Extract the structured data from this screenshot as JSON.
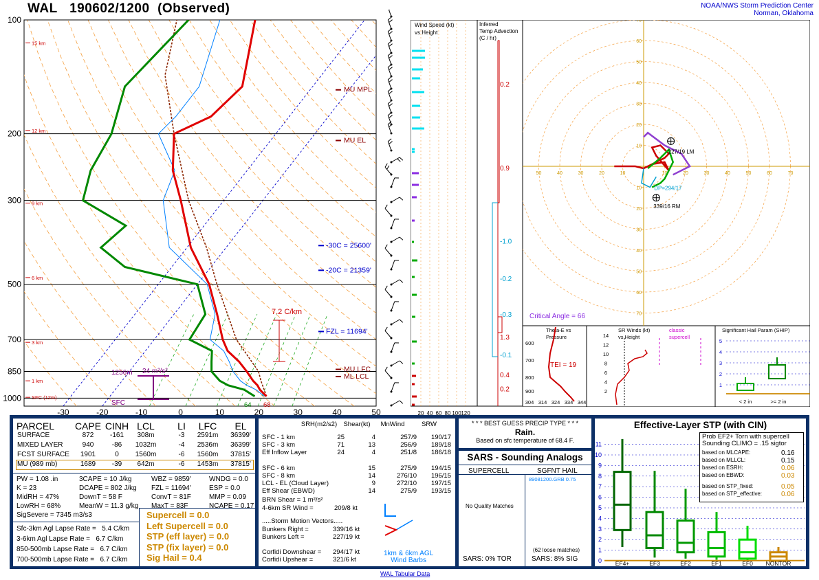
{
  "header": {
    "station": "WAL",
    "time": "190602/1200",
    "obs": "(Observed)",
    "org_line1": "NOAA/NWS Storm Prediction Center",
    "org_line2": "Norman, Oklahoma"
  },
  "chart_data": [
    {
      "type": "line",
      "name": "skewt",
      "xlabel_ticks": [
        -30,
        -20,
        -10,
        0,
        10,
        20,
        30,
        40,
        50
      ],
      "pressure_ticks": [
        100,
        200,
        300,
        500,
        700,
        850,
        1000
      ],
      "height_labels": [
        "15 km",
        "12 km",
        "9 km",
        "6 km",
        "3 km",
        "1 km",
        "SFC (12m)"
      ],
      "temperature_profile": [
        [
          989,
          20
        ],
        [
          950,
          17
        ],
        [
          925,
          15.5
        ],
        [
          900,
          13.5
        ],
        [
          850,
          10
        ],
        [
          800,
          6
        ],
        [
          750,
          1
        ],
        [
          700,
          -2.5
        ],
        [
          600,
          -9
        ],
        [
          500,
          -17
        ],
        [
          400,
          -29
        ],
        [
          300,
          -41
        ],
        [
          250,
          -49
        ],
        [
          200,
          -56
        ],
        [
          180,
          -50
        ],
        [
          150,
          -48
        ],
        [
          100,
          -58
        ]
      ],
      "dewpoint_profile": [
        [
          989,
          17
        ],
        [
          950,
          13
        ],
        [
          925,
          8
        ],
        [
          900,
          5
        ],
        [
          850,
          1
        ],
        [
          800,
          -1
        ],
        [
          750,
          -3
        ],
        [
          700,
          -11
        ],
        [
          600,
          -12
        ],
        [
          500,
          -20
        ],
        [
          450,
          -42
        ],
        [
          400,
          -52
        ],
        [
          350,
          -50
        ],
        [
          300,
          -66
        ],
        [
          250,
          -70
        ],
        [
          200,
          -72
        ],
        [
          150,
          -78
        ],
        [
          100,
          -75
        ]
      ],
      "annotations": {
        "mu_mpl": "MU MPL",
        "mu_el": "MU EL",
        "mu_lfc": "MU LFC",
        "ml_lcl": "ML LCL",
        "m30c": "-30C = 25600'",
        "m20c": "-20C = 21359'",
        "fzl": "FZL = 11694'",
        "lapse": "7.2 C/km",
        "srh_depth": "1256m",
        "srh_value": "24 m²/s²",
        "sfc": "SFC",
        "sfc_td": "64",
        "sfc_t": "68"
      }
    },
    {
      "type": "bar",
      "name": "wind-speed-vs-height",
      "title_line1": "Wind Speed (kt)",
      "title_line2": "vs Height",
      "x_ticks": [
        "20",
        "40",
        "60",
        "80",
        "100",
        "120"
      ]
    },
    {
      "type": "line",
      "name": "inferred-temp-advection",
      "title_line1": "Inferred",
      "title_line2": "Temp Advection",
      "title_line3": "(C / hr)",
      "values": [
        {
          "v": "0.2",
          "color": "#cc0000",
          "p": 150
        },
        {
          "v": "0.9",
          "color": "#cc0000",
          "p": 250
        },
        {
          "v": "-1.0",
          "color": "#00a0d0",
          "p": 390
        },
        {
          "v": "-0.2",
          "color": "#00a0d0",
          "p": 490
        },
        {
          "v": "-0.3",
          "color": "#00a0d0",
          "p": 610
        },
        {
          "v": "1.3",
          "color": "#cc0000",
          "p": 700
        },
        {
          "v": "-0.1",
          "color": "#00a0d0",
          "p": 780
        },
        {
          "v": "0.4",
          "color": "#cc0000",
          "p": 880
        },
        {
          "v": "0.2",
          "color": "#cc0000",
          "p": 960
        }
      ]
    },
    {
      "type": "line",
      "name": "hodograph",
      "ring_labels": [
        "10",
        "20",
        "30",
        "40",
        "50",
        "60",
        "70"
      ],
      "x_ticks": [
        "50",
        "40",
        "30",
        "20",
        "10",
        "10",
        "20",
        "30",
        "40",
        "50",
        "60",
        "70"
      ],
      "y_ticks": [
        "70",
        "60",
        "50",
        "40",
        "30",
        "20",
        "10",
        "10",
        "20",
        "30",
        "40",
        "50",
        "60",
        "70"
      ],
      "lm_label": "227/19 LM",
      "rm_label": "339/16 RM",
      "dp_label": "DP=294/17",
      "critical_angle": "Critical Angle = 66"
    },
    {
      "type": "line",
      "name": "theta-e-vs-pressure",
      "title_line1": "Theta-E vs",
      "title_line2": "Pressure",
      "tei": "TEI = 19",
      "y_ticks": [
        "600",
        "700",
        "800",
        "900"
      ],
      "x_ticks": [
        "304",
        "314",
        "324",
        "334",
        "344"
      ]
    },
    {
      "type": "line",
      "name": "sr-winds-vs-height",
      "title_line1": "SR Winds (kt)",
      "title_line2": "vs Height",
      "classic_line1": "classic",
      "classic_line2": "supercell",
      "y_ticks": [
        "14",
        "12",
        "10",
        "8",
        "6",
        "4",
        "2"
      ]
    },
    {
      "type": "bar",
      "name": "ship",
      "title": "Significant Hail Param (SHIP)",
      "y_ticks": [
        "5",
        "4",
        "3",
        "2",
        "1"
      ],
      "categories": [
        "< 2 in",
        ">= 2 in"
      ]
    }
  ],
  "parcel_table": {
    "headers": [
      "PARCEL",
      "CAPE",
      "CINH",
      "LCL",
      "LI",
      "LFC",
      "EL"
    ],
    "rows": [
      [
        "SURFACE",
        "872",
        "-161",
        "308m",
        "-3",
        "2591m",
        "36399'"
      ],
      [
        "MIXED LAYER",
        "940",
        "-86",
        "1032m",
        "-4",
        "2536m",
        "36399'"
      ],
      [
        "FCST SURFACE",
        "1901",
        "0",
        "1560m",
        "-6",
        "1560m",
        "37815'"
      ],
      [
        "MU   (989 mb)",
        "1689",
        "-39",
        "642m",
        "-6",
        "1453m",
        "37815'"
      ]
    ]
  },
  "indices": {
    "c1": [
      "PW = 1.08 .in",
      "K = 23",
      "MidRH = 47%",
      "LowRH = 68%",
      "SigSevere = 7345 m3/s3"
    ],
    "c2": [
      "3CAPE = 10 J/kg",
      "DCAPE = 802 J/kg",
      "DownT = 58 F",
      "MeanW = 11.3 g/kg"
    ],
    "c3": [
      "WBZ = 9859'",
      "FZL = 11694'",
      "ConvT = 81F",
      "MaxT = 83F"
    ],
    "c4": [
      "WNDG = 0.0",
      "ESP = 0.0",
      "MMP = 0.09",
      "NCAPE = 0.17"
    ]
  },
  "lapse_rates": [
    "Sfc-3km Agl Lapse Rate =   5.4 C/km",
    "3-6km Agl Lapse Rate =   6.7 C/km",
    "850-500mb Lapse Rate =   6.7 C/km",
    "700-500mb Lapse Rate =   6.7 C/km"
  ],
  "composite": [
    "Supercell = 0.0",
    "Left Supercell = 0.0",
    "STP (eff layer) = 0.0",
    "STP (fix layer) = 0.0",
    "Sig Hail = 0.4"
  ],
  "kinematics": {
    "headers": [
      "SRH(m2/s2)",
      "Shear(kt)",
      "MnWind",
      "SRW"
    ],
    "rows": [
      [
        "SFC - 1 km",
        "25",
        "4",
        "257/9",
        "190/17"
      ],
      [
        "SFC - 3 km",
        "71",
        "13",
        "256/9",
        "189/18"
      ],
      [
        "Eff Inflow Layer",
        "24",
        "4",
        "251/8",
        "186/18"
      ],
      [
        "",
        "",
        "",
        "",
        ""
      ],
      [
        "SFC - 6 km",
        "",
        "15",
        "275/9",
        "194/15"
      ],
      [
        "SFC - 8 km",
        "",
        "14",
        "276/10",
        "196/15"
      ],
      [
        "LCL - EL (Cloud Layer)",
        "",
        "9",
        "272/10",
        "197/15"
      ],
      [
        "Eff Shear (EBWD)",
        "",
        "14",
        "275/9",
        "193/15"
      ]
    ],
    "brn": "BRN Shear = 1 m²/s²",
    "srwind_label": "4-6km SR Wind =",
    "srwind_value": "209/8 kt",
    "motion_title": ".....Storm Motion Vectors.....",
    "motion": [
      [
        "Bunkers Right =",
        "339/16 kt"
      ],
      [
        "Bunkers Left =",
        "227/19 kt"
      ],
      [
        "",
        ""
      ],
      [
        "Corfidi Downshear =",
        "294/17 kt"
      ],
      [
        "Corfidi Upshear =",
        "321/6 kt"
      ]
    ],
    "mini_label1": "1km & 6km AGL",
    "mini_label2": "Wind Barbs"
  },
  "precip": {
    "title": "* * * BEST GUESS PRECIP TYPE * * *",
    "value": "Rain.",
    "note": "Based on sfc temperature of 68.4 F."
  },
  "sars": {
    "title": "SARS - Sounding Analogs",
    "supercell": "SUPERCELL",
    "hail": "SGFNT HAIL",
    "hail_match": "89081200.GRB  0.75",
    "no_quality": "No Quality Matches",
    "loose": "(62 loose matches)",
    "tor": "SARS:  0% TOR",
    "sig": "SARS:  8% SIG"
  },
  "stp": {
    "title": "Effective-Layer STP (with CIN)",
    "prob_line1": "Prob EF2+ Torn with supercell",
    "prob_line2": "Sounding CLIMO = .15 sigtor",
    "based": [
      [
        "based on MLCAPE:",
        "0.16",
        "#000000"
      ],
      [
        "based on MLLCL:",
        "0.15",
        "#000000"
      ],
      [
        "based on ESRH:",
        "0.06",
        "#cc8800"
      ],
      [
        "based on EBWD:",
        "0.03",
        "#cc8800"
      ],
      [
        "based on STP_fixed:",
        "0.05",
        "#cc8800"
      ],
      [
        "based on STP_effective:",
        "0.06",
        "#cc8800"
      ]
    ],
    "y_ticks": [
      "11",
      "10",
      "9",
      "8",
      "7",
      "6",
      "5",
      "4",
      "3",
      "2",
      "1",
      "0"
    ],
    "categories": [
      "EF4+",
      "EF3",
      "EF2",
      "EF1",
      "EF0",
      "NONTOR"
    ]
  },
  "footer": {
    "link": "WAL Tabular Data"
  },
  "colors": {
    "temp": "#e00000",
    "dewpoint": "#008800",
    "wetbulb": "#0080ff",
    "frame": "#0c2f66",
    "orange": "#cc8800"
  }
}
